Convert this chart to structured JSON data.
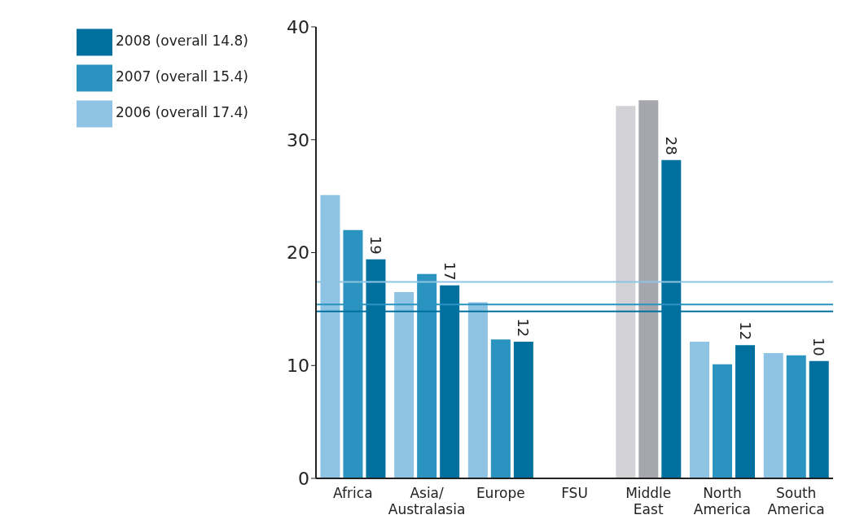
{
  "chart_data": {
    "type": "bar",
    "categories": [
      "Africa",
      "Asia/ Australasia",
      "Europe",
      "FSU",
      "Middle East",
      "North America",
      "South America"
    ],
    "series": [
      {
        "name": "2006 (overall 17.4)",
        "color": "#8ec3e3",
        "colors": [
          "#8ec3e3",
          "#8ec3e3",
          "#8ec3e3",
          "#8ec3e3",
          "#d2d2d6",
          "#8ec3e3",
          "#8ec3e3"
        ],
        "values": [
          25.1,
          16.5,
          15.6,
          0,
          33.0,
          12.1,
          11.1
        ]
      },
      {
        "name": "2007 (overall 15.4)",
        "color": "#2a93c0",
        "colors": [
          "#2a93c0",
          "#2a93c0",
          "#2a93c0",
          "#2a93c0",
          "#a6a6ae",
          "#2a93c0",
          "#2a93c0"
        ],
        "values": [
          22.0,
          18.1,
          12.3,
          0,
          33.5,
          10.1,
          10.9
        ]
      },
      {
        "name": "2008 (overall 14.8)",
        "color": "#00709e",
        "values": [
          19.4,
          17.1,
          12.1,
          0,
          28.2,
          11.8,
          10.4
        ],
        "value_labels": [
          "19",
          "17",
          "12",
          null,
          "28",
          "12",
          "10"
        ]
      }
    ],
    "ylim": [
      0,
      40
    ],
    "yticks": [
      0,
      10,
      20,
      30,
      40
    ],
    "grid": false,
    "legend": "top left",
    "ref_lines": [
      {
        "axis": "y",
        "value": 17.4,
        "color": "#8ec3e3"
      },
      {
        "axis": "y",
        "value": 15.4,
        "color": "#2a93c0"
      },
      {
        "axis": "y",
        "value": 14.8,
        "color": "#00709e"
      }
    ]
  }
}
